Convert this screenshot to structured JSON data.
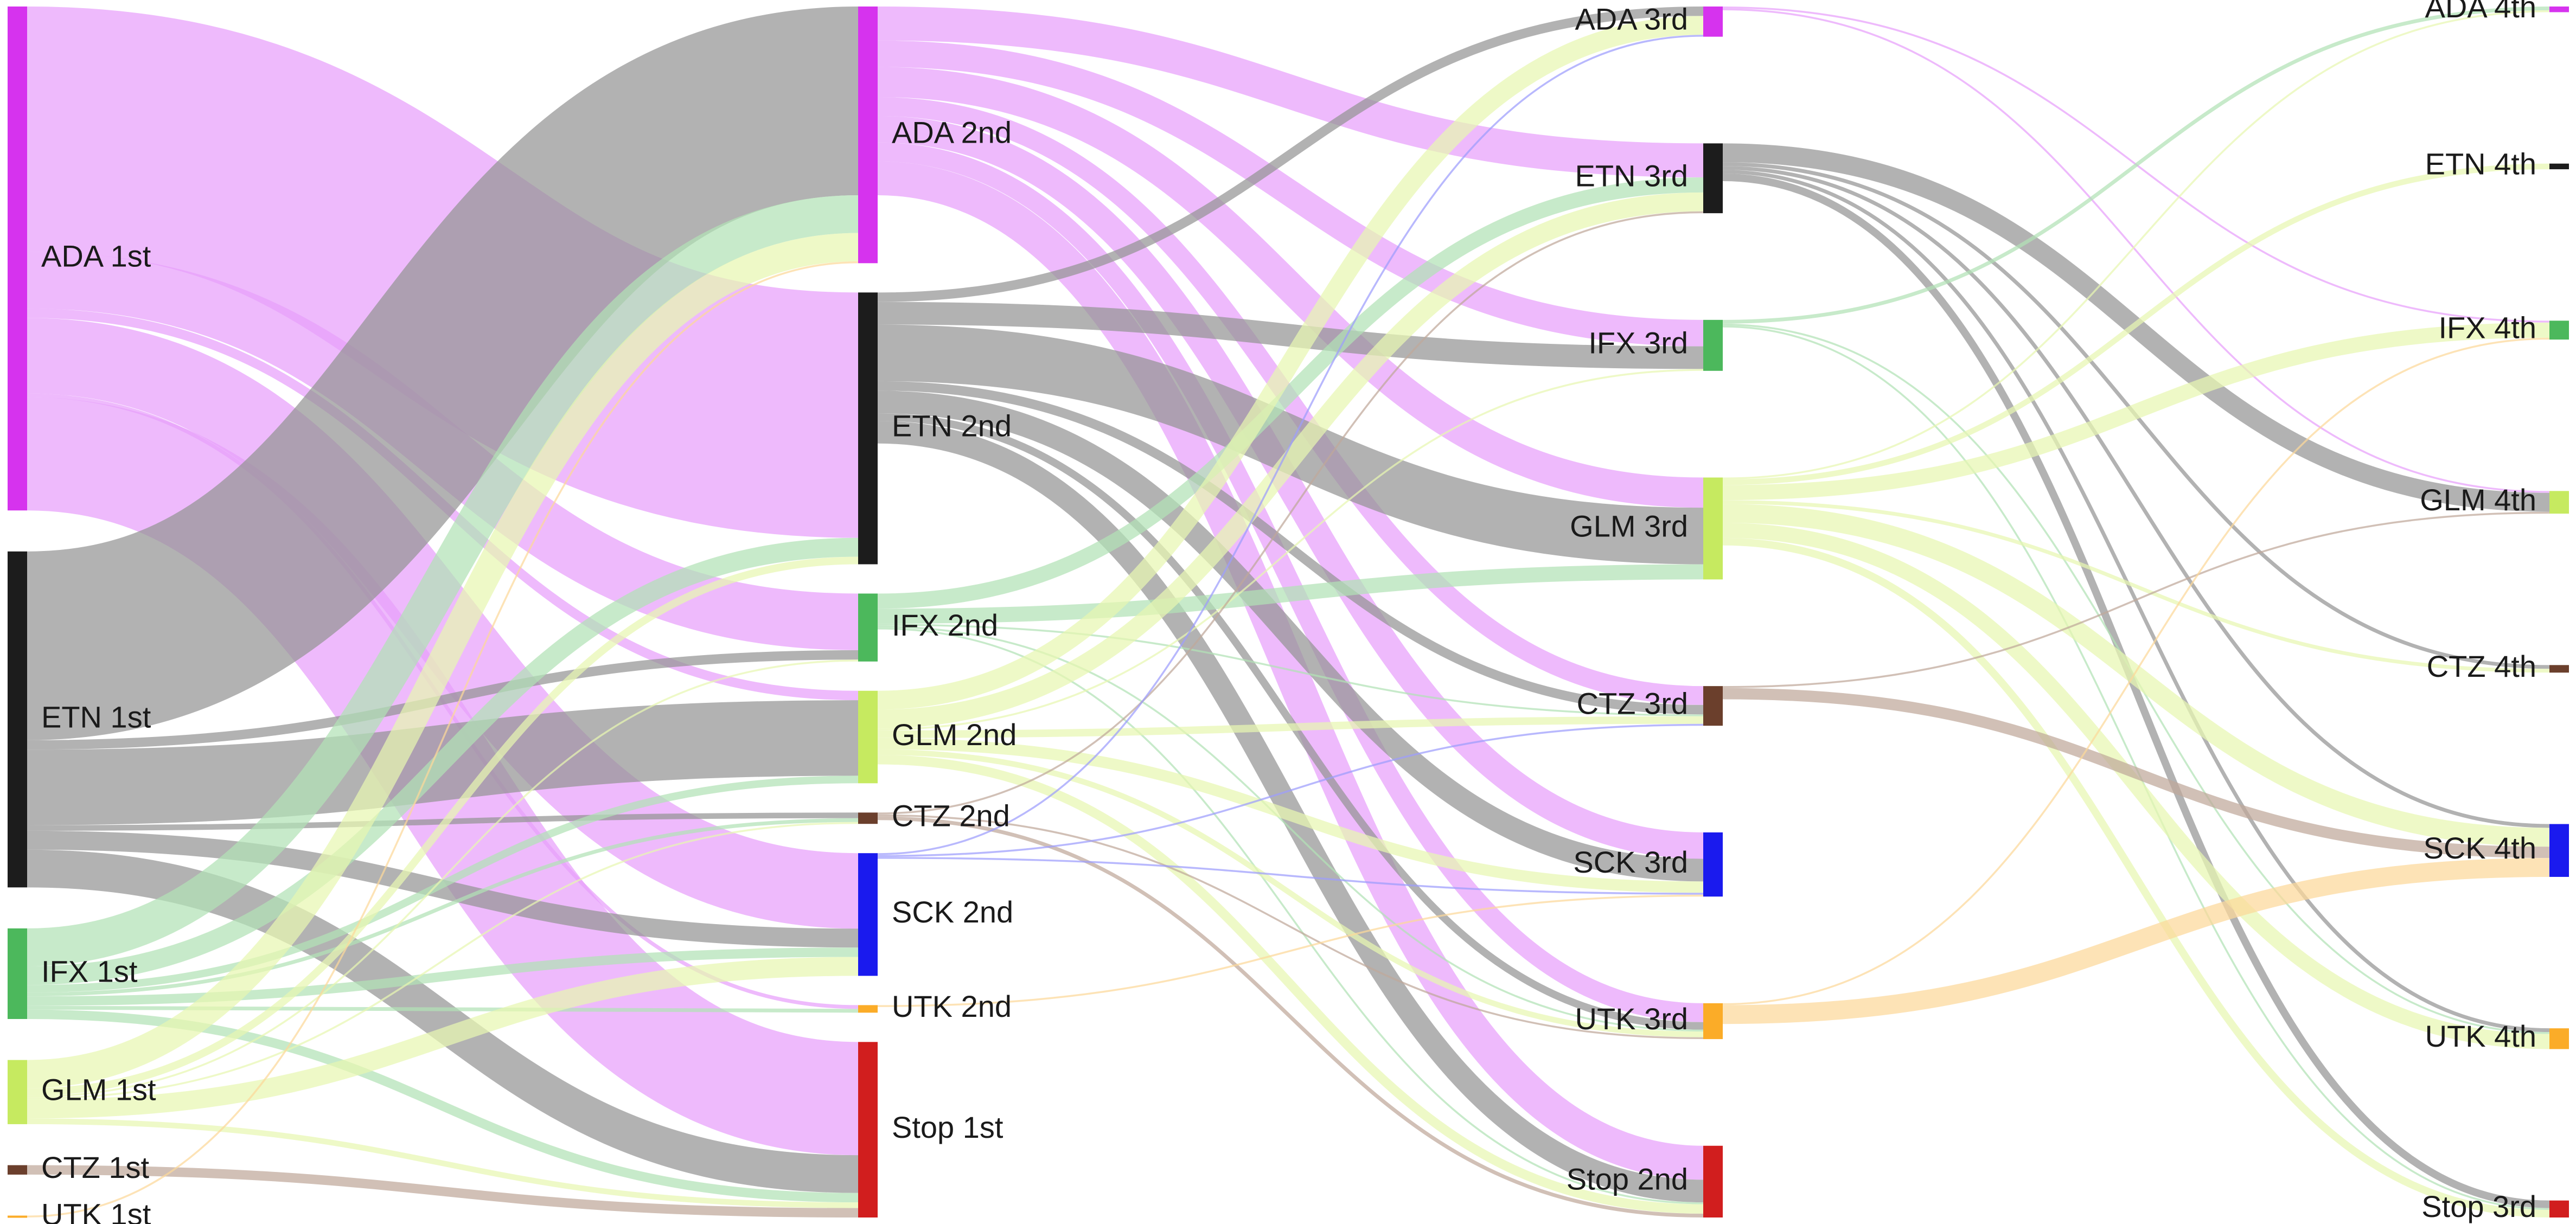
{
  "colors": {
    "ADA": "#d633ee",
    "ETN": "#1c1c1c",
    "IFX": "#4cb85c",
    "GLM": "#c6ea60",
    "CTZ": "#6b3f2c",
    "SCK": "#1a1aee",
    "UTK": "#fbac28",
    "Stop": "#d11e1e"
  },
  "link_colors": {
    "ADA": "#e8a0fb",
    "ETN": "#949494",
    "IFX": "#b1e2b5",
    "GLM": "#e7f6b1",
    "CTZ": "#bfa79a",
    "SCK": "#9c9cfc",
    "UTK": "#fcd89a",
    "Stop": "#eb9a9a"
  },
  "nodes": [
    {
      "id": "ADA1",
      "label": "ADA 1st",
      "group": "ADA",
      "column": 0
    },
    {
      "id": "ETN1",
      "label": "ETN 1st",
      "group": "ETN",
      "column": 0
    },
    {
      "id": "IFX1",
      "label": "IFX 1st",
      "group": "IFX",
      "column": 0
    },
    {
      "id": "GLM1",
      "label": "GLM 1st",
      "group": "GLM",
      "column": 0
    },
    {
      "id": "CTZ1",
      "label": "CTZ 1st",
      "group": "CTZ",
      "column": 0
    },
    {
      "id": "UTK1",
      "label": "UTK 1st",
      "group": "UTK",
      "column": 0
    },
    {
      "id": "ADA2",
      "label": "ADA 2nd",
      "group": "ADA",
      "column": 1
    },
    {
      "id": "ETN2",
      "label": "ETN 2nd",
      "group": "ETN",
      "column": 1
    },
    {
      "id": "IFX2",
      "label": "IFX 2nd",
      "group": "IFX",
      "column": 1
    },
    {
      "id": "GLM2",
      "label": "GLM 2nd",
      "group": "GLM",
      "column": 1
    },
    {
      "id": "CTZ2",
      "label": "CTZ 2nd",
      "group": "CTZ",
      "column": 1
    },
    {
      "id": "SCK2",
      "label": "SCK 2nd",
      "group": "SCK",
      "column": 1
    },
    {
      "id": "UTK2",
      "label": "UTK 2nd",
      "group": "UTK",
      "column": 1
    },
    {
      "id": "STOP1",
      "label": "Stop 1st",
      "group": "Stop",
      "column": 1
    },
    {
      "id": "ADA3",
      "label": "ADA 3rd",
      "group": "ADA",
      "column": 2
    },
    {
      "id": "ETN3",
      "label": "ETN 3rd",
      "group": "ETN",
      "column": 2
    },
    {
      "id": "IFX3",
      "label": "IFX 3rd",
      "group": "IFX",
      "column": 2
    },
    {
      "id": "GLM3",
      "label": "GLM 3rd",
      "group": "GLM",
      "column": 2
    },
    {
      "id": "CTZ3",
      "label": "CTZ 3rd",
      "group": "CTZ",
      "column": 2
    },
    {
      "id": "SCK3",
      "label": "SCK 3rd",
      "group": "SCK",
      "column": 2
    },
    {
      "id": "UTK3",
      "label": "UTK 3rd",
      "group": "UTK",
      "column": 2
    },
    {
      "id": "STOP2",
      "label": "Stop 2nd",
      "group": "Stop",
      "column": 2
    },
    {
      "id": "ADA4",
      "label": "ADA 4th",
      "group": "ADA",
      "column": 3
    },
    {
      "id": "ETN4",
      "label": "ETN 4th",
      "group": "ETN",
      "column": 3
    },
    {
      "id": "IFX4",
      "label": "IFX 4th",
      "group": "IFX",
      "column": 3
    },
    {
      "id": "GLM4",
      "label": "GLM 4th",
      "group": "GLM",
      "column": 3
    },
    {
      "id": "CTZ4",
      "label": "CTZ 4th",
      "group": "CTZ",
      "column": 3
    },
    {
      "id": "SCK4",
      "label": "SCK 4th",
      "group": "SCK",
      "column": 3
    },
    {
      "id": "UTK4",
      "label": "UTK 4th",
      "group": "UTK",
      "column": 3
    },
    {
      "id": "STOP3",
      "label": "Stop 3rd",
      "group": "Stop",
      "column": 3
    }
  ],
  "links": [
    {
      "source": "ADA1",
      "target": "ETN2",
      "value": 130
    },
    {
      "source": "ADA1",
      "target": "IFX2",
      "value": 30
    },
    {
      "source": "ADA1",
      "target": "GLM2",
      "value": 5
    },
    {
      "source": "ADA1",
      "target": "SCK2",
      "value": 40
    },
    {
      "source": "ADA1",
      "target": "UTK2",
      "value": 2
    },
    {
      "source": "ADA1",
      "target": "STOP1",
      "value": 60
    },
    {
      "source": "ETN1",
      "target": "ADA2",
      "value": 100
    },
    {
      "source": "ETN1",
      "target": "IFX2",
      "value": 5
    },
    {
      "source": "ETN1",
      "target": "GLM2",
      "value": 40
    },
    {
      "source": "ETN1",
      "target": "CTZ2",
      "value": 3
    },
    {
      "source": "ETN1",
      "target": "SCK2",
      "value": 10
    },
    {
      "source": "ETN1",
      "target": "STOP1",
      "value": 20
    },
    {
      "source": "IFX1",
      "target": "ADA2",
      "value": 20
    },
    {
      "source": "IFX1",
      "target": "ETN2",
      "value": 10
    },
    {
      "source": "IFX1",
      "target": "GLM2",
      "value": 4
    },
    {
      "source": "IFX1",
      "target": "CTZ2",
      "value": 2
    },
    {
      "source": "IFX1",
      "target": "SCK2",
      "value": 5
    },
    {
      "source": "IFX1",
      "target": "UTK2",
      "value": 2
    },
    {
      "source": "IFX1",
      "target": "STOP1",
      "value": 5
    },
    {
      "source": "GLM1",
      "target": "ADA2",
      "value": 15
    },
    {
      "source": "GLM1",
      "target": "ETN2",
      "value": 4
    },
    {
      "source": "GLM1",
      "target": "IFX2",
      "value": 1
    },
    {
      "source": "GLM1",
      "target": "CTZ2",
      "value": 1
    },
    {
      "source": "GLM1",
      "target": "SCK2",
      "value": 10
    },
    {
      "source": "GLM1",
      "target": "STOP1",
      "value": 3
    },
    {
      "source": "CTZ1",
      "target": "STOP1",
      "value": 5
    },
    {
      "source": "UTK1",
      "target": "ADA2",
      "value": 1
    },
    {
      "source": "ADA2",
      "target": "ETN3",
      "value": 18
    },
    {
      "source": "ADA2",
      "target": "IFX3",
      "value": 14
    },
    {
      "source": "ADA2",
      "target": "GLM3",
      "value": 16
    },
    {
      "source": "ADA2",
      "target": "CTZ3",
      "value": 10
    },
    {
      "source": "ADA2",
      "target": "SCK3",
      "value": 14
    },
    {
      "source": "ADA2",
      "target": "UTK3",
      "value": 10
    },
    {
      "source": "ADA2",
      "target": "STOP2",
      "value": 18
    },
    {
      "source": "ETN2",
      "target": "ADA3",
      "value": 5
    },
    {
      "source": "ETN2",
      "target": "IFX3",
      "value": 12
    },
    {
      "source": "ETN2",
      "target": "GLM3",
      "value": 30
    },
    {
      "source": "ETN2",
      "target": "CTZ3",
      "value": 5
    },
    {
      "source": "ETN2",
      "target": "SCK3",
      "value": 12
    },
    {
      "source": "ETN2",
      "target": "UTK3",
      "value": 4
    },
    {
      "source": "ETN2",
      "target": "STOP2",
      "value": 12
    },
    {
      "source": "IFX2",
      "target": "ETN3",
      "value": 8
    },
    {
      "source": "IFX2",
      "target": "GLM3",
      "value": 8
    },
    {
      "source": "IFX2",
      "target": "CTZ3",
      "value": 1
    },
    {
      "source": "IFX2",
      "target": "UTK3",
      "value": 1
    },
    {
      "source": "IFX2",
      "target": "STOP2",
      "value": 1
    },
    {
      "source": "GLM2",
      "target": "ADA3",
      "value": 10
    },
    {
      "source": "GLM2",
      "target": "ETN3",
      "value": 10
    },
    {
      "source": "GLM2",
      "target": "IFX3",
      "value": 1
    },
    {
      "source": "GLM2",
      "target": "CTZ3",
      "value": 4
    },
    {
      "source": "GLM2",
      "target": "SCK3",
      "value": 6
    },
    {
      "source": "GLM2",
      "target": "UTK3",
      "value": 3
    },
    {
      "source": "GLM2",
      "target": "STOP2",
      "value": 5
    },
    {
      "source": "CTZ2",
      "target": "ETN3",
      "value": 1
    },
    {
      "source": "CTZ2",
      "target": "UTK3",
      "value": 1
    },
    {
      "source": "CTZ2",
      "target": "STOP2",
      "value": 2
    },
    {
      "source": "SCK2",
      "target": "ADA3",
      "value": 1
    },
    {
      "source": "SCK2",
      "target": "CTZ3",
      "value": 1
    },
    {
      "source": "SCK2",
      "target": "SCK3",
      "value": 1
    },
    {
      "source": "UTK2",
      "target": "SCK3",
      "value": 1
    },
    {
      "source": "ADA3",
      "target": "IFX4",
      "value": 1
    },
    {
      "source": "ADA3",
      "target": "GLM4",
      "value": 1
    },
    {
      "source": "ETN3",
      "target": "GLM4",
      "value": 10
    },
    {
      "source": "ETN3",
      "target": "CTZ4",
      "value": 2
    },
    {
      "source": "ETN3",
      "target": "SCK4",
      "value": 2
    },
    {
      "source": "ETN3",
      "target": "UTK4",
      "value": 2
    },
    {
      "source": "ETN3",
      "target": "STOP3",
      "value": 4
    },
    {
      "source": "IFX3",
      "target": "ADA4",
      "value": 2
    },
    {
      "source": "IFX3",
      "target": "UTK4",
      "value": 1
    },
    {
      "source": "IFX3",
      "target": "STOP3",
      "value": 1
    },
    {
      "source": "GLM3",
      "target": "ADA4",
      "value": 1
    },
    {
      "source": "GLM3",
      "target": "ETN4",
      "value": 3
    },
    {
      "source": "GLM3",
      "target": "IFX4",
      "value": 8
    },
    {
      "source": "GLM3",
      "target": "CTZ4",
      "value": 2
    },
    {
      "source": "GLM3",
      "target": "SCK4",
      "value": 10
    },
    {
      "source": "GLM3",
      "target": "UTK4",
      "value": 8
    },
    {
      "source": "GLM3",
      "target": "STOP3",
      "value": 4
    },
    {
      "source": "CTZ3",
      "target": "SCK4",
      "value": 6
    },
    {
      "source": "CTZ3",
      "target": "GLM4",
      "value": 1
    },
    {
      "source": "UTK3",
      "target": "IFX4",
      "value": 1
    },
    {
      "source": "UTK3",
      "target": "SCK4",
      "value": 10
    }
  ]
}
